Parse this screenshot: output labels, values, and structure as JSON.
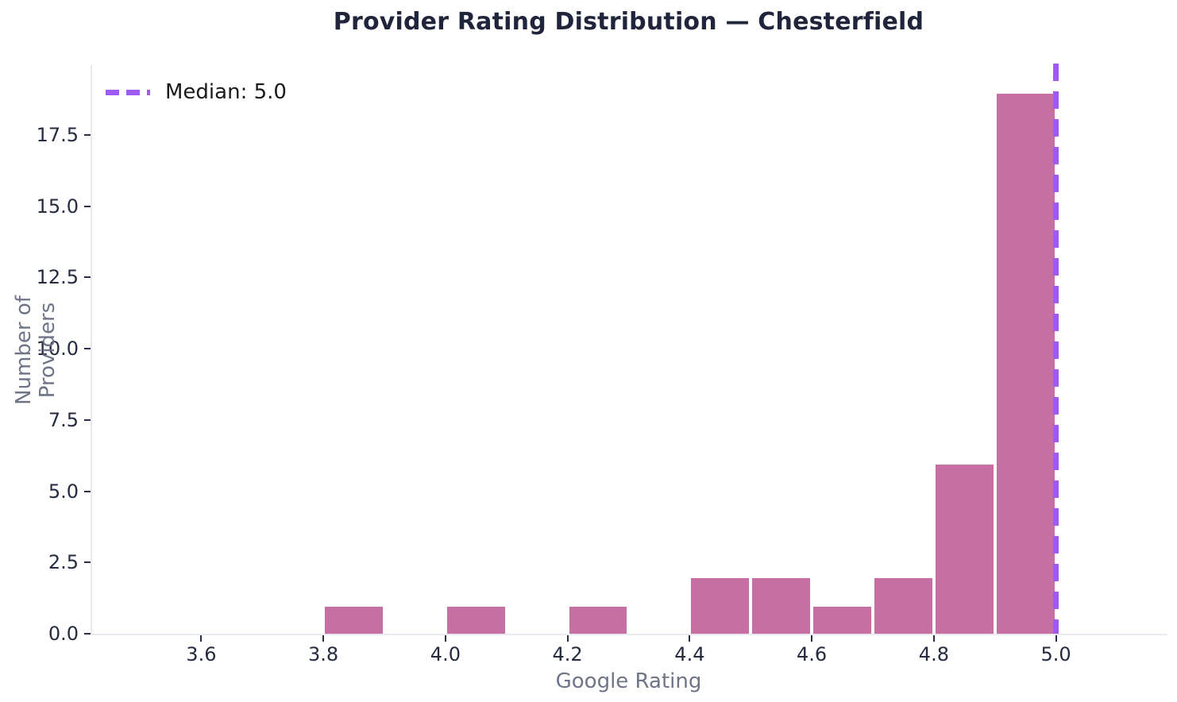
{
  "chart_data": {
    "type": "bar",
    "subtype": "histogram",
    "title": "Provider Rating Distribution — Chesterfield",
    "xlabel": "Google Rating",
    "ylabel": "Number of Providers",
    "xlim": [
      3.42,
      5.18
    ],
    "ylim": [
      0,
      20
    ],
    "grid": false,
    "x_ticks": [
      "3.6",
      "3.8",
      "4.0",
      "4.2",
      "4.4",
      "4.6",
      "4.8",
      "5.0"
    ],
    "y_ticks": [
      "0.0",
      "2.5",
      "5.0",
      "7.5",
      "10.0",
      "12.5",
      "15.0",
      "17.5"
    ],
    "bin_width": 0.1,
    "bins": [
      {
        "x0": 3.8,
        "x1": 3.9,
        "count": 1
      },
      {
        "x0": 4.0,
        "x1": 4.1,
        "count": 1
      },
      {
        "x0": 4.2,
        "x1": 4.3,
        "count": 1
      },
      {
        "x0": 4.4,
        "x1": 4.5,
        "count": 2
      },
      {
        "x0": 4.5,
        "x1": 4.6,
        "count": 2
      },
      {
        "x0": 4.6,
        "x1": 4.7,
        "count": 1
      },
      {
        "x0": 4.7,
        "x1": 4.8,
        "count": 2
      },
      {
        "x0": 4.8,
        "x1": 4.9,
        "count": 6
      },
      {
        "x0": 4.9,
        "x1": 5.0,
        "count": 19
      }
    ],
    "median": {
      "value": 5.0,
      "label": "Median: 5.0",
      "style": "dashed"
    },
    "legend": {
      "position": "upper-left",
      "entries": [
        {
          "label": "Median: 5.0",
          "style": "dashed"
        }
      ]
    },
    "colors": {
      "bar": "#C66FA2",
      "bar_edge": "#FFFFFF",
      "median_line": "#9D5BF0",
      "title": "#21253B",
      "tick_label": "#262B3F",
      "tick_mark": "#2A2F45",
      "axis_label": "#6F7487",
      "spine": "#E9E9EF",
      "legend_text": "#1A1A1A",
      "background": "#FFFFFF"
    }
  }
}
